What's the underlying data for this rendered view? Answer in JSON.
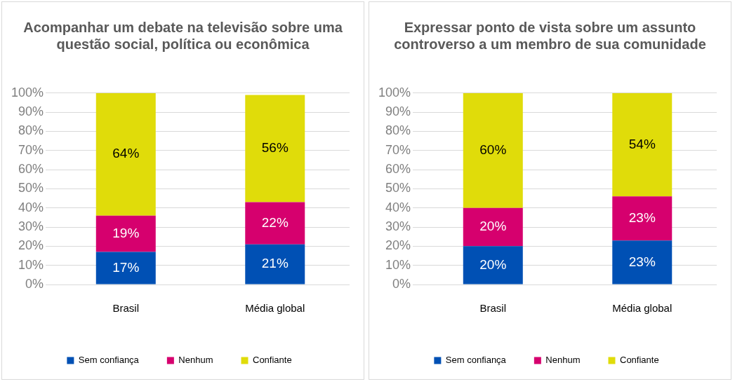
{
  "chart_data": [
    {
      "type": "bar",
      "title": "Acompanhar um debate na televisão sobre uma questão social, política ou econômica",
      "categories": [
        "Brasil",
        "Média global"
      ],
      "stacked": true,
      "series": [
        {
          "name": "Sem confiança",
          "color": "#0050b4",
          "values": [
            17,
            21
          ],
          "value_labels": [
            "17%",
            "21%"
          ]
        },
        {
          "name": "Nenhum",
          "color": "#d6006e",
          "values": [
            19,
            22
          ],
          "value_labels": [
            "19%",
            "22%"
          ]
        },
        {
          "name": "Confiante",
          "color": "#e0dc0a",
          "values": [
            64,
            56
          ],
          "value_labels": [
            "64%",
            "56%"
          ]
        }
      ],
      "ylim": [
        0,
        100
      ],
      "yticks": [
        {
          "value": 0,
          "label": "0%"
        },
        {
          "value": 10,
          "label": "10%"
        },
        {
          "value": 20,
          "label": "20%"
        },
        {
          "value": 30,
          "label": "30%"
        },
        {
          "value": 40,
          "label": "40%"
        },
        {
          "value": 50,
          "label": "50%"
        },
        {
          "value": 60,
          "label": "60%"
        },
        {
          "value": 70,
          "label": "70%"
        },
        {
          "value": 80,
          "label": "80%"
        },
        {
          "value": 90,
          "label": "90%"
        },
        {
          "value": 100,
          "label": "100%"
        }
      ],
      "grid": "y",
      "legend": "bottom"
    },
    {
      "type": "bar",
      "title": "Expressar ponto de vista sobre um assunto controverso a um membro de sua comunidade",
      "categories": [
        "Brasil",
        "Média global"
      ],
      "stacked": true,
      "series": [
        {
          "name": "Sem confiança",
          "color": "#0050b4",
          "values": [
            20,
            23
          ],
          "value_labels": [
            "20%",
            "23%"
          ]
        },
        {
          "name": "Nenhum",
          "color": "#d6006e",
          "values": [
            20,
            23
          ],
          "value_labels": [
            "20%",
            "23%"
          ]
        },
        {
          "name": "Confiante",
          "color": "#e0dc0a",
          "values": [
            60,
            54
          ],
          "value_labels": [
            "60%",
            "54%"
          ]
        }
      ],
      "ylim": [
        0,
        100
      ],
      "yticks": [
        {
          "value": 0,
          "label": "0%"
        },
        {
          "value": 10,
          "label": "10%"
        },
        {
          "value": 20,
          "label": "20%"
        },
        {
          "value": 30,
          "label": "30%"
        },
        {
          "value": 40,
          "label": "40%"
        },
        {
          "value": 50,
          "label": "50%"
        },
        {
          "value": 60,
          "label": "60%"
        },
        {
          "value": 70,
          "label": "70%"
        },
        {
          "value": 80,
          "label": "80%"
        },
        {
          "value": 90,
          "label": "90%"
        },
        {
          "value": 100,
          "label": "100%"
        }
      ],
      "grid": "y",
      "legend": "bottom"
    }
  ]
}
